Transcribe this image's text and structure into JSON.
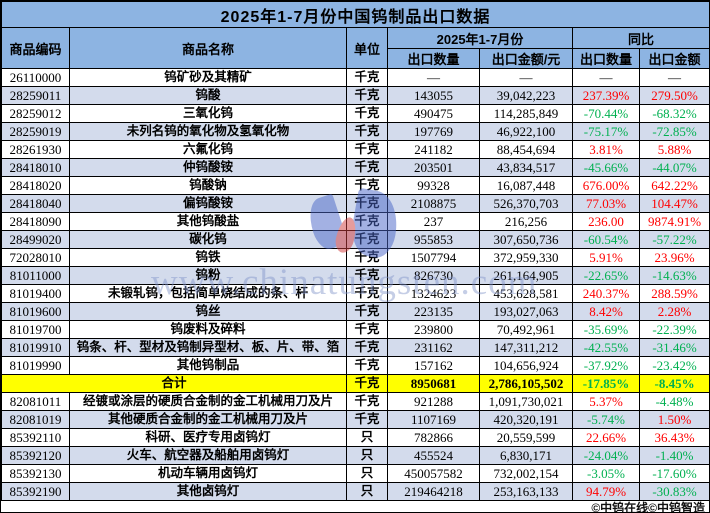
{
  "title": "2025年1-7月份中国钨制品出口数据",
  "header": {
    "code": "商品编码",
    "name": "商品名称",
    "unit": "单位",
    "period_group": "2025年1-7月份",
    "yoy_group": "同比",
    "export_qty": "出口数量",
    "export_amount": "出口金额/元",
    "yoy_qty": "出口数量",
    "yoy_amount": "出口金额"
  },
  "rows": [
    {
      "code": "26110000",
      "name": "钨矿砂及其精矿",
      "unit": "千克",
      "qty": "—",
      "amount": "—",
      "yoy_qty": "—",
      "yoy_amount": "—"
    },
    {
      "code": "28259011",
      "name": "钨酸",
      "unit": "千克",
      "qty": "143055",
      "amount": "39,042,223",
      "yoy_qty": "237.39%",
      "yoy_amount": "279.50%"
    },
    {
      "code": "28259012",
      "name": "三氧化钨",
      "unit": "千克",
      "qty": "490475",
      "amount": "114,285,849",
      "yoy_qty": "-70.44%",
      "yoy_amount": "-68.32%"
    },
    {
      "code": "28259019",
      "name": "未列名钨的氧化物及氢氧化物",
      "unit": "千克",
      "qty": "197769",
      "amount": "46,922,100",
      "yoy_qty": "-75.17%",
      "yoy_amount": "-72.85%"
    },
    {
      "code": "28261930",
      "name": "六氟化钨",
      "unit": "千克",
      "qty": "241182",
      "amount": "88,454,694",
      "yoy_qty": "3.81%",
      "yoy_amount": "5.88%"
    },
    {
      "code": "28418010",
      "name": "仲钨酸铵",
      "unit": "千克",
      "qty": "203501",
      "amount": "43,834,517",
      "yoy_qty": "-45.66%",
      "yoy_amount": "-44.07%"
    },
    {
      "code": "28418020",
      "name": "钨酸钠",
      "unit": "千克",
      "qty": "99328",
      "amount": "16,087,448",
      "yoy_qty": "676.00%",
      "yoy_amount": "642.22%"
    },
    {
      "code": "28418040",
      "name": "偏钨酸铵",
      "unit": "千克",
      "qty": "2108875",
      "amount": "526,370,703",
      "yoy_qty": "77.03%",
      "yoy_amount": "104.47%"
    },
    {
      "code": "28418090",
      "name": "其他钨酸盐",
      "unit": "千克",
      "qty": "237",
      "amount": "216,256",
      "yoy_qty": "236.00",
      "yoy_amount": "9874.91%"
    },
    {
      "code": "28499020",
      "name": "碳化钨",
      "unit": "千克",
      "qty": "955853",
      "amount": "307,650,736",
      "yoy_qty": "-60.54%",
      "yoy_amount": "-57.22%"
    },
    {
      "code": "72028010",
      "name": "钨铁",
      "unit": "千克",
      "qty": "1507794",
      "amount": "372,959,330",
      "yoy_qty": "5.91%",
      "yoy_amount": "23.96%"
    },
    {
      "code": "81011000",
      "name": "钨粉",
      "unit": "千克",
      "qty": "826730",
      "amount": "261,164,905",
      "yoy_qty": "-22.65%",
      "yoy_amount": "-14.63%"
    },
    {
      "code": "81019400",
      "name": "未锻轧钨，包括简单烧结成的条、杆",
      "unit": "千克",
      "qty": "1324623",
      "amount": "453,628,581",
      "yoy_qty": "240.37%",
      "yoy_amount": "288.59%"
    },
    {
      "code": "81019600",
      "name": "钨丝",
      "unit": "千克",
      "qty": "223135",
      "amount": "193,027,063",
      "yoy_qty": "8.42%",
      "yoy_amount": "2.28%"
    },
    {
      "code": "81019700",
      "name": "钨废料及碎料",
      "unit": "千克",
      "qty": "239800",
      "amount": "70,492,961",
      "yoy_qty": "-35.69%",
      "yoy_amount": "-22.39%"
    },
    {
      "code": "81019910",
      "name": "钨条、杆、型材及钨制异型材、板、片、带、箔",
      "unit": "千克",
      "qty": "231162",
      "amount": "147,311,212",
      "yoy_qty": "-42.55%",
      "yoy_amount": "-31.46%"
    },
    {
      "code": "81019990",
      "name": "其他钨制品",
      "unit": "千克",
      "qty": "157162",
      "amount": "104,656,924",
      "yoy_qty": "-37.92%",
      "yoy_amount": "-23.42%"
    },
    {
      "total": true,
      "name": "合计",
      "unit": "千克",
      "qty": "8950681",
      "amount": "2,786,105,502",
      "yoy_qty": "-17.85%",
      "yoy_amount": "-8.45%"
    },
    {
      "code": "82081011",
      "name": "经镀或涂层的硬质合金制的金工机械用刀及片",
      "unit": "千克",
      "qty": "921288",
      "amount": "1,091,730,021",
      "yoy_qty": "5.37%",
      "yoy_amount": "-4.48%"
    },
    {
      "code": "82081019",
      "name": "其他硬质合金制的金工机械用刀及片",
      "unit": "千克",
      "qty": "1107169",
      "amount": "420,320,191",
      "yoy_qty": "-5.74%",
      "yoy_amount": "1.50%"
    },
    {
      "code": "85392110",
      "name": "科研、医疗专用卤钨灯",
      "unit": "只",
      "qty": "782866",
      "amount": "20,559,599",
      "yoy_qty": "22.66%",
      "yoy_amount": "36.43%"
    },
    {
      "code": "85392120",
      "name": "火车、航空器及船舶用卤钨灯",
      "unit": "只",
      "qty": "455524",
      "amount": "6,830,171",
      "yoy_qty": "-24.04%",
      "yoy_amount": "-1.40%"
    },
    {
      "code": "85392130",
      "name": "机动车辆用卤钨灯",
      "unit": "只",
      "qty": "450057582",
      "amount": "732,002,154",
      "yoy_qty": "-3.05%",
      "yoy_amount": "-17.60%"
    },
    {
      "code": "85392190",
      "name": "其他卤钨灯",
      "unit": "只",
      "qty": "219464218",
      "amount": "253,163,133",
      "yoy_qty": "94.79%",
      "yoy_amount": "-30.83%"
    }
  ],
  "watermark": {
    "text": "www.chinatungsten.com"
  },
  "footer": "©中钨在线©中钨智造",
  "colors": {
    "header_bg": "#8DB4E2",
    "row_alt_bg": "#D3DBEC",
    "total_bg": "#FFFF00",
    "positive": "#FF0000",
    "negative": "#00B050",
    "border": "#000000",
    "watermark": "#8193C9"
  }
}
